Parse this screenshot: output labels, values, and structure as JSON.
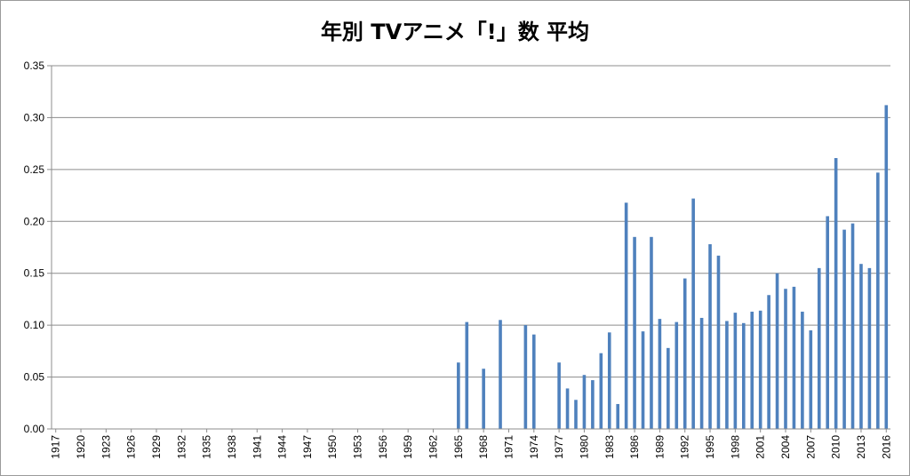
{
  "chart_data": {
    "type": "bar",
    "title": "年別 TVアニメ「!」数 平均",
    "xlabel": "",
    "ylabel": "",
    "ylim": [
      0,
      0.35
    ],
    "yticks": [
      "0.00",
      "0.05",
      "0.10",
      "0.15",
      "0.20",
      "0.25",
      "0.30",
      "0.35"
    ],
    "grid": true,
    "legend": "none",
    "bar_color": "#4F81BD",
    "categories": [
      "1917",
      "1918",
      "1919",
      "1920",
      "1921",
      "1922",
      "1923",
      "1924",
      "1925",
      "1926",
      "1927",
      "1928",
      "1929",
      "1930",
      "1931",
      "1932",
      "1933",
      "1934",
      "1935",
      "1936",
      "1937",
      "1938",
      "1939",
      "1940",
      "1941",
      "1942",
      "1943",
      "1944",
      "1945",
      "1946",
      "1947",
      "1948",
      "1949",
      "1950",
      "1951",
      "1952",
      "1953",
      "1954",
      "1955",
      "1956",
      "1957",
      "1958",
      "1959",
      "1960",
      "1961",
      "1962",
      "1963",
      "1964",
      "1965",
      "1966",
      "1967",
      "1968",
      "1969",
      "1970",
      "1971",
      "1972",
      "1973",
      "1974",
      "1975",
      "1976",
      "1977",
      "1978",
      "1979",
      "1980",
      "1981",
      "1982",
      "1983",
      "1984",
      "1985",
      "1986",
      "1987",
      "1988",
      "1989",
      "1990",
      "1991",
      "1992",
      "1993",
      "1994",
      "1995",
      "1996",
      "1997",
      "1998",
      "1999",
      "2000",
      "2001",
      "2002",
      "2003",
      "2004",
      "2005",
      "2006",
      "2007",
      "2008",
      "2009",
      "2010",
      "2011",
      "2012",
      "2013",
      "2014",
      "2015",
      "2016"
    ],
    "xtick_labels": [
      "1917",
      "1920",
      "1923",
      "1926",
      "1929",
      "1932",
      "1935",
      "1938",
      "1941",
      "1944",
      "1947",
      "1950",
      "1953",
      "1956",
      "1959",
      "1962",
      "1965",
      "1968",
      "1971",
      "1974",
      "1977",
      "1980",
      "1983",
      "1986",
      "1989",
      "1992",
      "1995",
      "1998",
      "2001",
      "2004",
      "2007",
      "2010",
      "2013",
      "2016"
    ],
    "values": [
      0,
      0,
      0,
      0,
      0,
      0,
      0,
      0,
      0,
      0,
      0,
      0,
      0,
      0,
      0,
      0,
      0,
      0,
      0,
      0,
      0,
      0,
      0,
      0,
      0,
      0,
      0,
      0,
      0,
      0,
      0,
      0,
      0,
      0,
      0,
      0,
      0,
      0,
      0,
      0,
      0,
      0,
      0,
      0,
      0,
      0,
      0,
      0,
      0.064,
      0.103,
      0,
      0.058,
      0,
      0.105,
      0,
      0,
      0.1,
      0.091,
      0,
      0,
      0.064,
      0.039,
      0.028,
      0.052,
      0.047,
      0.073,
      0.093,
      0.024,
      0.218,
      0.185,
      0.094,
      0.185,
      0.106,
      0.078,
      0.103,
      0.145,
      0.222,
      0.107,
      0.178,
      0.167,
      0.104,
      0.112,
      0.102,
      0.113,
      0.114,
      0.129,
      0.15,
      0.135,
      0.137,
      0.113,
      0.095,
      0.155,
      0.205,
      0.261,
      0.192,
      0.198,
      0.159,
      0.155,
      0.247,
      0.312
    ]
  }
}
